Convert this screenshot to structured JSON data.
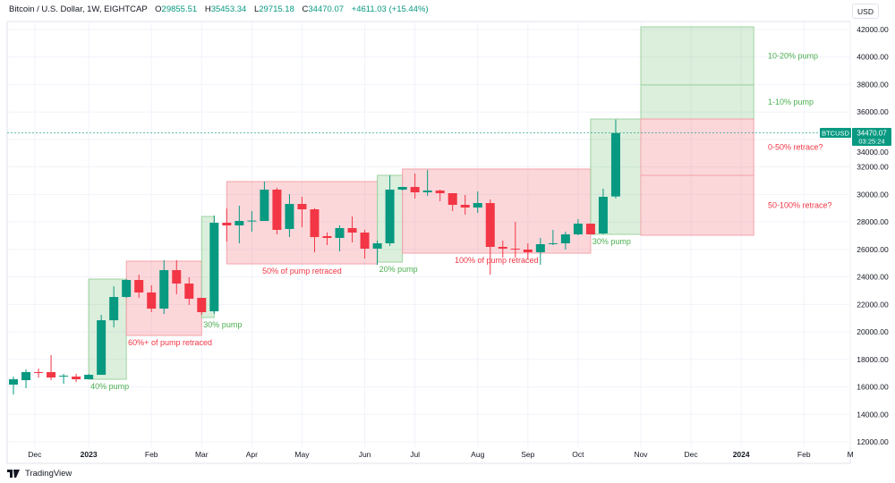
{
  "header": {
    "symbol_desc": "Bitcoin / U.S. Dollar, 1W, EIGHTCAP",
    "open_label": "O",
    "open": "29855.51",
    "high_label": "H",
    "high": "35453.34",
    "low_label": "L",
    "low": "29715.18",
    "close_label": "C",
    "close": "34470.07",
    "change": "+4611.03 (+15.44%)"
  },
  "currency_button": "USD",
  "price_tag": {
    "symbol": "BTCUSD",
    "price": "34470.07",
    "countdown": "03:25:24"
  },
  "branding": "TradingView",
  "colors": {
    "up": "#089981",
    "down": "#f23645",
    "pump_box": "#4caf50",
    "retrace_box": "#f23645"
  },
  "chart_data": {
    "type": "candlestick",
    "title": "Bitcoin / U.S. Dollar, 1W, EIGHTCAP",
    "interval": "1W",
    "first_week": "2022-11-21",
    "ylim": [
      12000,
      42000
    ],
    "yticks": [
      "12000.00",
      "14000.00",
      "16000.00",
      "18000.00",
      "20000.00",
      "22000.00",
      "24000.00",
      "26000.00",
      "28000.00",
      "30000.00",
      "32000.00",
      "34000.00",
      "36000.00",
      "38000.00",
      "40000.00",
      "42000.00"
    ],
    "xticks": [
      {
        "label": "Dec",
        "week": 1.7,
        "bold": false
      },
      {
        "label": "2023",
        "week": 6,
        "bold": true
      },
      {
        "label": "Feb",
        "week": 11,
        "bold": false
      },
      {
        "label": "Mar",
        "week": 15,
        "bold": false
      },
      {
        "label": "Apr",
        "week": 19,
        "bold": false
      },
      {
        "label": "May",
        "week": 23,
        "bold": false
      },
      {
        "label": "Jun",
        "week": 28,
        "bold": false
      },
      {
        "label": "Jul",
        "week": 32,
        "bold": false
      },
      {
        "label": "Aug",
        "week": 37,
        "bold": false
      },
      {
        "label": "Sep",
        "week": 41,
        "bold": false
      },
      {
        "label": "Oct",
        "week": 45,
        "bold": false
      },
      {
        "label": "Nov",
        "week": 50,
        "bold": false
      },
      {
        "label": "Dec",
        "week": 54,
        "bold": false
      },
      {
        "label": "2024",
        "week": 58,
        "bold": true
      },
      {
        "label": "Feb",
        "week": 63,
        "bold": false
      },
      {
        "label": "M",
        "week": 66.7,
        "bold": false
      }
    ],
    "candles": [
      [
        16164,
        16749,
        15448,
        16554
      ],
      [
        16489,
        17270,
        15903,
        17075
      ],
      [
        17075,
        17335,
        16684,
        17040
      ],
      [
        17075,
        18311,
        16489,
        16684
      ],
      [
        16749,
        16945,
        16229,
        16814
      ],
      [
        16749,
        16945,
        16359,
        16554
      ],
      [
        16554,
        16945,
        16554,
        16879
      ],
      [
        16879,
        21240,
        16879,
        20849
      ],
      [
        20849,
        23322,
        20329,
        22541
      ],
      [
        22541,
        23843,
        22476,
        23778
      ],
      [
        23778,
        24168,
        22476,
        22867
      ],
      [
        22867,
        23388,
        21435,
        21695
      ],
      [
        21695,
        25210,
        21305,
        24494
      ],
      [
        24494,
        25210,
        22737,
        23518
      ],
      [
        23518,
        23973,
        21956,
        22411
      ],
      [
        22476,
        22476,
        21240,
        21435
      ],
      [
        21500,
        28464,
        21305,
        27943
      ],
      [
        27943,
        28984,
        26576,
        27748
      ],
      [
        27748,
        29180,
        26446,
        28073
      ],
      [
        28073,
        28789,
        27292,
        28100
      ],
      [
        28073,
        30937,
        28073,
        30351
      ],
      [
        30351,
        30481,
        27097,
        27422
      ],
      [
        27488,
        30026,
        26902,
        29310
      ],
      [
        29310,
        29830,
        27618,
        28919
      ],
      [
        28919,
        28984,
        25795,
        26902
      ],
      [
        26967,
        27227,
        26316,
        26837
      ],
      [
        26837,
        27748,
        25861,
        27553
      ],
      [
        27553,
        28399,
        26511,
        27227
      ],
      [
        27227,
        27422,
        25340,
        26056
      ],
      [
        26056,
        26641,
        24884,
        26446
      ],
      [
        26446,
        31392,
        26251,
        30351
      ],
      [
        30351,
        30546,
        30286,
        30546
      ],
      [
        30546,
        31522,
        29700,
        30156
      ],
      [
        30156,
        31783,
        29895,
        30286
      ],
      [
        30286,
        30351,
        29505,
        30091
      ],
      [
        30091,
        30091,
        28789,
        29245
      ],
      [
        29245,
        29961,
        28529,
        29049
      ],
      [
        29049,
        30221,
        28659,
        29375
      ],
      [
        29375,
        29635,
        24168,
        26186
      ],
      [
        26186,
        26641,
        25405,
        26056
      ],
      [
        26056,
        28008,
        25405,
        25991
      ],
      [
        25991,
        26446,
        25275,
        25795
      ],
      [
        25795,
        26837,
        24884,
        26381
      ],
      [
        26381,
        27422,
        26316,
        26446
      ],
      [
        26446,
        27292,
        25991,
        27097
      ],
      [
        27097,
        28203,
        27032,
        27878
      ],
      [
        27878,
        27878,
        27097,
        27097
      ],
      [
        27162,
        30416,
        27097,
        29830
      ],
      [
        29855.51,
        35453.34,
        29715.18,
        34470.07
      ]
    ],
    "last_price": 34470.07,
    "boxes": [
      {
        "kind": "pump",
        "from_week": 6,
        "to_week": 9,
        "top": 23843,
        "bottom": 16554,
        "label": "40% pump",
        "label_pos": "below"
      },
      {
        "kind": "retrace",
        "from_week": 9,
        "to_week": 15,
        "top": 25145,
        "bottom": 19743,
        "label": "60%+ of pump retraced",
        "label_pos": "below"
      },
      {
        "kind": "pump",
        "from_week": 15,
        "to_week": 16,
        "top": 28399,
        "bottom": 21044,
        "label": "30% pump",
        "label_pos": "below"
      },
      {
        "kind": "retrace",
        "from_week": 17,
        "to_week": 29,
        "top": 30937,
        "bottom": 24948,
        "label": "50% of pump retraced",
        "label_pos": "below-center"
      },
      {
        "kind": "pump",
        "from_week": 29,
        "to_week": 31,
        "top": 31392,
        "bottom": 25080,
        "label": "20% pump",
        "label_pos": "below"
      },
      {
        "kind": "retrace",
        "from_week": 31,
        "to_week": 46,
        "top": 31848,
        "bottom": 25730,
        "label": "100% of pump retraced",
        "label_pos": "below-center"
      },
      {
        "kind": "pump",
        "from_week": 46,
        "to_week": 50,
        "top": 35490,
        "bottom": 27097,
        "label": "30% pump",
        "label_pos": "below"
      }
    ],
    "projection": {
      "from_week": 50,
      "to_week": 59,
      "zones": [
        {
          "kind": "pump",
          "top": 42195,
          "bottom": 37965,
          "label": "10-20% pump"
        },
        {
          "kind": "pump",
          "top": 37965,
          "bottom": 35490,
          "label": "1-10% pump"
        },
        {
          "kind": "retrace",
          "top": 35490,
          "bottom": 31392,
          "label": "0-50% retrace?"
        },
        {
          "kind": "retrace",
          "top": 31392,
          "bottom": 27032,
          "label": "50-100% retrace?"
        }
      ]
    }
  }
}
